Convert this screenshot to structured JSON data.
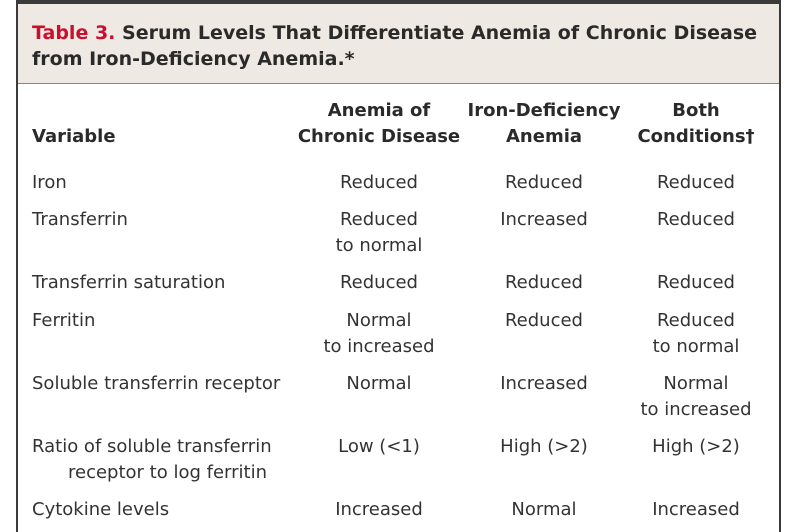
{
  "header": {
    "table_label": "Table 3.",
    "title_line1": "Serum Levels That Differentiate Anemia of Chronic Disease",
    "title_line2": "from Iron-Deficiency Anemia.*"
  },
  "columns": {
    "variable": "Variable",
    "acd_line1": "Anemia of",
    "acd_line2": "Chronic Disease",
    "ida_line1": "Iron-Deficiency",
    "ida_line2": "Anemia",
    "both_line1": "Both",
    "both_line2": "Conditions†"
  },
  "rows": [
    {
      "label": [
        "Iron"
      ],
      "acd": [
        "Reduced"
      ],
      "ida": [
        "Reduced"
      ],
      "both": [
        "Reduced"
      ]
    },
    {
      "label": [
        "Transferrin"
      ],
      "acd": [
        "Reduced",
        "to normal"
      ],
      "ida": [
        "Increased"
      ],
      "both": [
        "Reduced"
      ]
    },
    {
      "label": [
        "Transferrin saturation"
      ],
      "acd": [
        "Reduced"
      ],
      "ida": [
        "Reduced"
      ],
      "both": [
        "Reduced"
      ]
    },
    {
      "label": [
        "Ferritin"
      ],
      "acd": [
        "Normal",
        "to increased"
      ],
      "ida": [
        "Reduced"
      ],
      "both": [
        "Reduced",
        "to normal"
      ]
    },
    {
      "label": [
        "Soluble transferrin receptor"
      ],
      "acd": [
        "Normal"
      ],
      "ida": [
        "Increased"
      ],
      "both": [
        "Normal",
        "to increased"
      ]
    },
    {
      "label": [
        "Ratio of soluble transferrin",
        "receptor to log ferritin"
      ],
      "acd": [
        "Low (<1)"
      ],
      "ida": [
        "High (>2)"
      ],
      "both": [
        "High (>2)"
      ]
    },
    {
      "label": [
        "Cytokine levels"
      ],
      "acd": [
        "Increased"
      ],
      "ida": [
        "Normal"
      ],
      "both": [
        "Increased"
      ]
    }
  ],
  "colors": {
    "header_bg": "#efe9e3",
    "label_red": "#c8102e",
    "rule": "#3a3a3a"
  }
}
